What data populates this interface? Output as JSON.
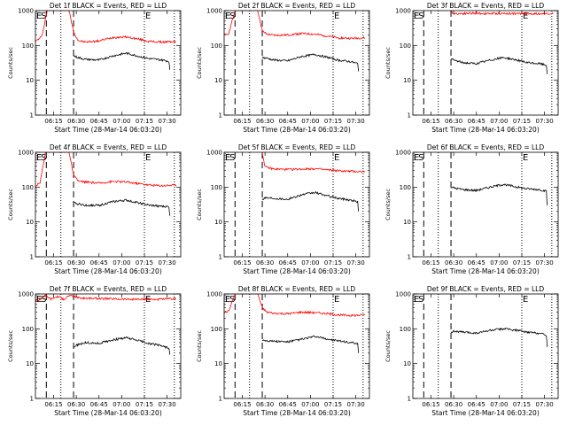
{
  "shared": {
    "ylabel": "Counts/sec",
    "xlabel": "Start Time (28-Mar-14 06:03:20)",
    "x_tick_labels": [
      "06:15",
      "06:30",
      "06:45",
      "07:00",
      "07:15",
      "07:30"
    ],
    "y_tick_labels": [
      "1",
      "10",
      "100",
      "1000"
    ],
    "colors": {
      "events": "#000000",
      "lld": "#ff0000",
      "axes": "#000000"
    },
    "markers": {
      "E": "E",
      "S": "S"
    }
  },
  "chart_data": [
    {
      "type": "line",
      "title": "Det 1f BLACK = Events, RED = LLD",
      "xlim": [
        6.05,
        7.65
      ],
      "ylim": [
        1,
        1000
      ],
      "y_scale": "log",
      "dashed_lines_x": [
        6.17,
        6.47
      ],
      "dotted_lines_x": [
        6.33,
        7.25,
        7.58
      ],
      "marker_labels": [
        {
          "text": "E",
          "x": 6.05
        },
        {
          "text": "S",
          "x": 6.1
        },
        {
          "text": "E",
          "x": 7.25
        }
      ],
      "series": [
        {
          "color": "#ff0000",
          "x": [
            6.05,
            6.12,
            6.18,
            6.28,
            6.33,
            6.42,
            6.47,
            6.52,
            6.6,
            6.75,
            6.9,
            7.05,
            7.2,
            7.3,
            7.45,
            7.6
          ],
          "y": [
            130,
            180,
            1000,
            1000,
            1000,
            1000,
            250,
            140,
            125,
            135,
            170,
            175,
            150,
            130,
            125,
            130
          ]
        },
        {
          "color": "#000000",
          "x": [
            6.47,
            6.52,
            6.6,
            6.75,
            6.9,
            7.05,
            7.2,
            7.3,
            7.45,
            7.52,
            7.53
          ],
          "y": [
            50,
            45,
            40,
            38,
            50,
            60,
            48,
            42,
            38,
            35,
            20
          ]
        }
      ]
    },
    {
      "type": "line",
      "title": "Det 2f BLACK = Events, RED = LLD",
      "xlim": [
        6.05,
        7.65
      ],
      "ylim": [
        1,
        1000
      ],
      "y_scale": "log",
      "dashed_lines_x": [
        6.17,
        6.47
      ],
      "dotted_lines_x": [
        6.33,
        7.25,
        7.58
      ],
      "marker_labels": [
        {
          "text": "E",
          "x": 6.05
        },
        {
          "text": "S",
          "x": 6.1
        },
        {
          "text": "E",
          "x": 7.25
        }
      ],
      "series": [
        {
          "color": "#ff0000",
          "x": [
            6.05,
            6.1,
            6.17,
            6.25,
            6.33,
            6.42,
            6.47,
            6.52,
            6.6,
            6.75,
            6.9,
            7.05,
            7.2,
            7.3,
            7.45,
            7.6
          ],
          "y": [
            200,
            220,
            1000,
            1000,
            1000,
            1000,
            260,
            210,
            195,
            200,
            220,
            210,
            185,
            165,
            160,
            165
          ]
        },
        {
          "color": "#000000",
          "x": [
            6.47,
            6.52,
            6.6,
            6.75,
            6.9,
            7.05,
            7.2,
            7.3,
            7.45,
            7.52,
            7.53
          ],
          "y": [
            45,
            43,
            38,
            36,
            48,
            55,
            45,
            38,
            34,
            30,
            18
          ]
        }
      ]
    },
    {
      "type": "line",
      "title": "Det 3f BLACK = Events, RED = LLD",
      "xlim": [
        6.05,
        7.65
      ],
      "ylim": [
        1,
        1000
      ],
      "y_scale": "log",
      "dashed_lines_x": [
        6.17,
        6.47
      ],
      "dotted_lines_x": [
        6.33,
        7.25,
        7.58
      ],
      "marker_labels": [
        {
          "text": "E",
          "x": 6.05
        },
        {
          "text": "S",
          "x": 6.1
        },
        {
          "text": "E",
          "x": 7.25
        }
      ],
      "series": [
        {
          "color": "#ff0000",
          "x": [
            6.47,
            6.5,
            6.7,
            6.9,
            7.1,
            7.3,
            7.5,
            7.6
          ],
          "y": [
            950,
            820,
            840,
            820,
            830,
            810,
            820,
            830
          ]
        },
        {
          "color": "#000000",
          "x": [
            6.47,
            6.5,
            6.6,
            6.75,
            6.9,
            7.05,
            7.2,
            7.3,
            7.45,
            7.52,
            7.53
          ],
          "y": [
            40,
            38,
            32,
            30,
            38,
            45,
            38,
            32,
            30,
            27,
            15
          ]
        }
      ]
    },
    {
      "type": "line",
      "title": "Det 4f BLACK = Events, RED = LLD",
      "xlim": [
        6.05,
        7.65
      ],
      "ylim": [
        1,
        1000
      ],
      "y_scale": "log",
      "dashed_lines_x": [
        6.17,
        6.47
      ],
      "dotted_lines_x": [
        6.33,
        7.25,
        7.58
      ],
      "marker_labels": [
        {
          "text": "E",
          "x": 6.05
        },
        {
          "text": "S",
          "x": 6.1
        },
        {
          "text": "E",
          "x": 7.25
        }
      ],
      "series": [
        {
          "color": "#ff0000",
          "x": [
            6.05,
            6.1,
            6.16,
            6.25,
            6.33,
            6.42,
            6.47,
            6.52,
            6.6,
            6.75,
            6.9,
            7.05,
            7.2,
            7.3,
            7.45,
            7.6
          ],
          "y": [
            110,
            130,
            1000,
            1000,
            1000,
            1000,
            220,
            150,
            140,
            130,
            145,
            140,
            125,
            115,
            110,
            115
          ]
        },
        {
          "color": "#000000",
          "x": [
            6.47,
            6.52,
            6.6,
            6.75,
            6.9,
            7.05,
            7.2,
            7.3,
            7.45,
            7.52,
            7.53
          ],
          "y": [
            35,
            33,
            30,
            30,
            38,
            42,
            35,
            30,
            28,
            27,
            15
          ]
        }
      ]
    },
    {
      "type": "line",
      "title": "Det 5f BLACK = Events, RED = LLD",
      "xlim": [
        6.05,
        7.65
      ],
      "ylim": [
        1,
        1000
      ],
      "y_scale": "log",
      "dashed_lines_x": [
        6.17,
        6.47
      ],
      "dotted_lines_x": [
        6.33,
        7.25,
        7.58
      ],
      "marker_labels": [
        {
          "text": "E",
          "x": 6.05
        },
        {
          "text": "S",
          "x": 6.1
        },
        {
          "text": "E",
          "x": 7.25
        }
      ],
      "series": [
        {
          "color": "#ff0000",
          "x": [
            6.47,
            6.5,
            6.6,
            6.75,
            6.9,
            7.05,
            7.2,
            7.35,
            7.5,
            7.6
          ],
          "y": [
            1000,
            380,
            330,
            320,
            330,
            340,
            310,
            290,
            280,
            280
          ]
        },
        {
          "color": "#000000",
          "x": [
            6.47,
            6.5,
            6.6,
            6.75,
            6.9,
            7.05,
            7.2,
            7.3,
            7.45,
            7.52,
            7.53
          ],
          "y": [
            45,
            50,
            48,
            45,
            60,
            70,
            55,
            48,
            42,
            38,
            20
          ]
        }
      ]
    },
    {
      "type": "line",
      "title": "Det 6f BLACK = Events, RED = LLD",
      "xlim": [
        6.05,
        7.65
      ],
      "ylim": [
        1,
        1000
      ],
      "y_scale": "log",
      "dashed_lines_x": [
        6.17,
        6.47
      ],
      "dotted_lines_x": [
        6.33,
        7.25,
        7.58
      ],
      "marker_labels": [
        {
          "text": "E",
          "x": 6.05
        },
        {
          "text": "S",
          "x": 6.1
        },
        {
          "text": "E",
          "x": 7.25
        }
      ],
      "series": [
        {
          "color": "#000000",
          "x": [
            6.47,
            6.5,
            6.6,
            6.75,
            6.9,
            7.05,
            7.2,
            7.3,
            7.45,
            7.52,
            7.53
          ],
          "y": [
            100,
            95,
            85,
            80,
            100,
            120,
            100,
            90,
            85,
            75,
            30
          ]
        }
      ]
    },
    {
      "type": "line",
      "title": "Det 7f BLACK = Events, RED = LLD",
      "xlim": [
        6.05,
        7.65
      ],
      "ylim": [
        1,
        1000
      ],
      "y_scale": "log",
      "dashed_lines_x": [
        6.17,
        6.47
      ],
      "dotted_lines_x": [
        6.33,
        7.25,
        7.58
      ],
      "marker_labels": [
        {
          "text": "E",
          "x": 6.05
        },
        {
          "text": "S",
          "x": 6.1
        },
        {
          "text": "E",
          "x": 7.25
        }
      ],
      "series": [
        {
          "color": "#ff0000",
          "x": [
            6.05,
            6.1,
            6.16,
            6.22,
            6.3,
            6.36,
            6.42,
            6.47,
            6.55,
            6.75,
            6.95,
            7.15,
            7.35,
            7.55,
            7.6
          ],
          "y": [
            650,
            700,
            900,
            720,
            850,
            700,
            900,
            850,
            760,
            740,
            720,
            700,
            700,
            720,
            730
          ]
        },
        {
          "color": "#000000",
          "x": [
            6.47,
            6.52,
            6.6,
            6.75,
            6.9,
            7.05,
            7.2,
            7.3,
            7.45,
            7.52,
            7.53
          ],
          "y": [
            30,
            35,
            40,
            38,
            48,
            55,
            45,
            38,
            32,
            28,
            18
          ]
        }
      ]
    },
    {
      "type": "line",
      "title": "Det 8f BLACK = Events, RED = LLD",
      "xlim": [
        6.05,
        7.65
      ],
      "ylim": [
        1,
        1000
      ],
      "y_scale": "log",
      "dashed_lines_x": [
        6.17,
        6.47
      ],
      "dotted_lines_x": [
        6.33,
        7.25,
        7.58
      ],
      "marker_labels": [
        {
          "text": "E",
          "x": 6.05
        },
        {
          "text": "S",
          "x": 6.1
        },
        {
          "text": "E",
          "x": 7.25
        }
      ],
      "series": [
        {
          "color": "#ff0000",
          "x": [
            6.05,
            6.1,
            6.17,
            6.25,
            6.33,
            6.42,
            6.47,
            6.52,
            6.6,
            6.75,
            6.9,
            7.05,
            7.2,
            7.3,
            7.45,
            7.6
          ],
          "y": [
            300,
            320,
            1000,
            1000,
            1000,
            1000,
            400,
            300,
            280,
            270,
            300,
            290,
            270,
            250,
            240,
            250
          ]
        },
        {
          "color": "#000000",
          "x": [
            6.47,
            6.52,
            6.6,
            6.75,
            6.9,
            7.05,
            7.2,
            7.3,
            7.45,
            7.52,
            7.53
          ],
          "y": [
            48,
            46,
            44,
            42,
            50,
            60,
            50,
            45,
            40,
            36,
            20
          ]
        }
      ]
    },
    {
      "type": "line",
      "title": "Det 9f BLACK = Events, RED = LLD",
      "xlim": [
        6.05,
        7.65
      ],
      "ylim": [
        1,
        1000
      ],
      "y_scale": "log",
      "dashed_lines_x": [
        6.17,
        6.47
      ],
      "dotted_lines_x": [
        6.33,
        7.25,
        7.58
      ],
      "marker_labels": [
        {
          "text": "E",
          "x": 6.05
        },
        {
          "text": "S",
          "x": 6.1
        },
        {
          "text": "E",
          "x": 7.25
        }
      ],
      "series": [
        {
          "color": "#000000",
          "x": [
            6.47,
            6.5,
            6.6,
            6.75,
            6.9,
            7.05,
            7.2,
            7.3,
            7.45,
            7.52,
            7.53
          ],
          "y": [
            80,
            85,
            80,
            75,
            90,
            100,
            90,
            80,
            75,
            65,
            30
          ]
        }
      ]
    }
  ]
}
